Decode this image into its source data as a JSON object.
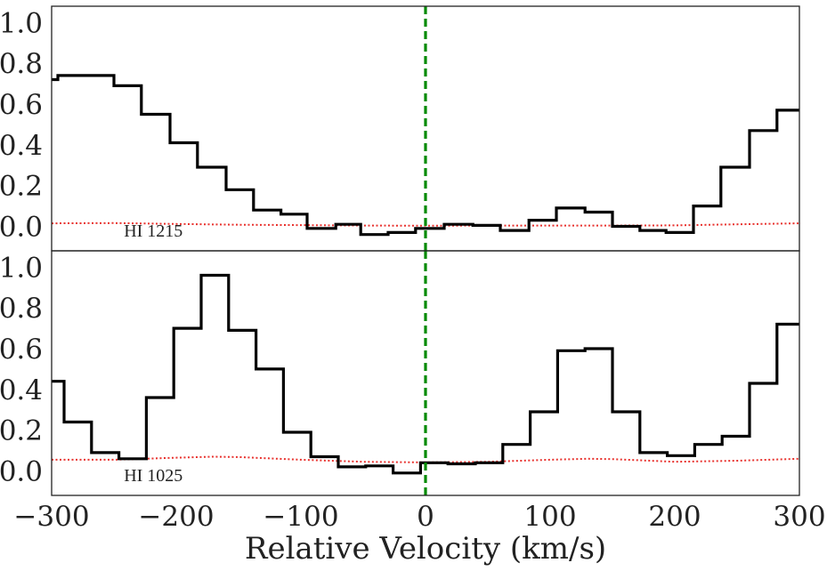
{
  "chart_data": {
    "type": "line",
    "xlabel": "Relative Velocity (km/s)",
    "xlim": [
      -300,
      300
    ],
    "xticks": [
      -300,
      -200,
      -100,
      0,
      100,
      200,
      300
    ],
    "xtick_labels": [
      "−300",
      "−200",
      "−100",
      "0",
      "100",
      "200",
      "300"
    ],
    "vline_x": 0,
    "colors": {
      "flux": "#000000",
      "error": "#e8322e",
      "vline": "#008a00",
      "frame": "#222222"
    },
    "panels": [
      {
        "annotation": "HI 1215",
        "ylim": [
          -0.12,
          1.08
        ],
        "yticks": [
          0.0,
          0.2,
          0.4,
          0.6,
          0.8,
          1.0
        ],
        "ytick_labels": [
          "0.0",
          "0.2",
          "0.4",
          "0.6",
          "0.8",
          "1.0"
        ],
        "flux_steps": [
          [
            -300,
            0.72
          ],
          [
            -295,
            0.74
          ],
          [
            -250,
            0.69
          ],
          [
            -228,
            0.55
          ],
          [
            -205,
            0.41
          ],
          [
            -183,
            0.29
          ],
          [
            -160,
            0.18
          ],
          [
            -138,
            0.08
          ],
          [
            -116,
            0.06
          ],
          [
            -95,
            -0.01
          ],
          [
            -72,
            0.01
          ],
          [
            -52,
            -0.04
          ],
          [
            -30,
            -0.03
          ],
          [
            -8,
            -0.01
          ],
          [
            15,
            0.01
          ],
          [
            38,
            0.005
          ],
          [
            60,
            -0.02
          ],
          [
            83,
            0.03
          ],
          [
            105,
            0.09
          ],
          [
            128,
            0.07
          ],
          [
            150,
            0.0
          ],
          [
            172,
            -0.02
          ],
          [
            193,
            -0.03
          ],
          [
            215,
            0.1
          ],
          [
            237,
            0.29
          ],
          [
            260,
            0.47
          ],
          [
            282,
            0.57
          ],
          [
            300,
            0.57
          ]
        ],
        "error_x": [
          -300,
          -250,
          -200,
          -150,
          -100,
          -50,
          0,
          50,
          100,
          150,
          200,
          250,
          300
        ],
        "error_y": [
          0.015,
          0.016,
          0.012,
          0.008,
          0.006,
          0.004,
          0.003,
          0.004,
          0.004,
          0.004,
          0.005,
          0.01,
          0.015
        ]
      },
      {
        "annotation": "HI 1025",
        "ylim": [
          -0.12,
          1.08
        ],
        "yticks": [
          0.0,
          0.2,
          0.4,
          0.6,
          0.8,
          1.0
        ],
        "ytick_labels": [
          "0.0",
          "0.2",
          "0.4",
          "0.6",
          "0.8",
          "1.0"
        ],
        "flux_steps": [
          [
            -300,
            0.44
          ],
          [
            -290,
            0.24
          ],
          [
            -268,
            0.09
          ],
          [
            -246,
            0.06
          ],
          [
            -224,
            0.36
          ],
          [
            -202,
            0.7
          ],
          [
            -180,
            0.96
          ],
          [
            -158,
            0.69
          ],
          [
            -136,
            0.5
          ],
          [
            -114,
            0.19
          ],
          [
            -92,
            0.07
          ],
          [
            -70,
            0.02
          ],
          [
            -48,
            0.025
          ],
          [
            -26,
            -0.01
          ],
          [
            -4,
            0.04
          ],
          [
            18,
            0.035
          ],
          [
            40,
            0.04
          ],
          [
            62,
            0.13
          ],
          [
            84,
            0.29
          ],
          [
            106,
            0.59
          ],
          [
            128,
            0.6
          ],
          [
            150,
            0.29
          ],
          [
            172,
            0.09
          ],
          [
            194,
            0.075
          ],
          [
            216,
            0.13
          ],
          [
            238,
            0.17
          ],
          [
            260,
            0.43
          ],
          [
            282,
            0.72
          ],
          [
            300,
            0.72
          ]
        ],
        "error_x": [
          -300,
          -250,
          -200,
          -170,
          -150,
          -100,
          -50,
          0,
          50,
          100,
          130,
          150,
          200,
          250,
          300
        ],
        "error_y": [
          0.055,
          0.055,
          0.065,
          0.07,
          0.068,
          0.055,
          0.045,
          0.042,
          0.045,
          0.055,
          0.06,
          0.058,
          0.045,
          0.05,
          0.06
        ]
      }
    ]
  }
}
